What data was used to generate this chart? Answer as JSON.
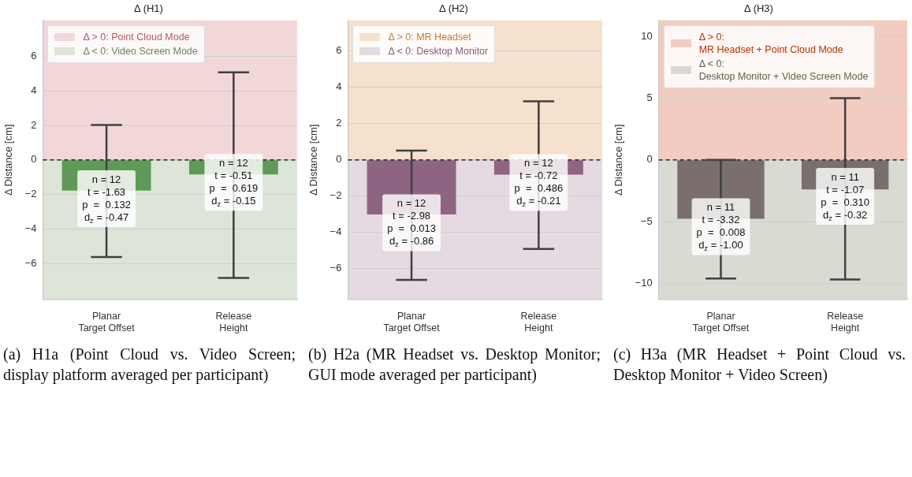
{
  "chart_data": [
    {
      "type": "bar",
      "title": "Δ (H1)",
      "ylabel": "Δ Distance [cm]",
      "categories": [
        "Planar Target Offset",
        "Release Height"
      ],
      "values": [
        -1.78,
        -0.84
      ],
      "color": "#5e9a55",
      "errors": [
        [
          -5.63,
          2.03
        ],
        [
          -6.84,
          5.08
        ]
      ],
      "ylim": [
        -8.1,
        8.1
      ],
      "yticks": [
        {
          "value": -6,
          "label": "−6"
        },
        {
          "value": -4,
          "label": "−4"
        },
        {
          "value": -2,
          "label": "−2"
        },
        0,
        2,
        4,
        6
      ],
      "grid": "y",
      "legend": "top left",
      "bands": [
        {
          "axis": "y",
          "from": 0,
          "to": 8.1,
          "label": "Δ > 0: Point Cloud Mode",
          "color": "#f2d7d9"
        },
        {
          "axis": "y",
          "from": -8.1,
          "to": 0,
          "label": "Δ < 0: Video Screen Mode",
          "color": "#dce5d8"
        }
      ],
      "ref_lines": [
        {
          "axis": "y",
          "value": 0,
          "color": "#000000",
          "line_style": "dashed"
        }
      ],
      "annotations": [
        {
          "text": "n = 12\nt = -1.63\np  =  0.132\nd$_{z}$ = -0.47",
          "x": "Planar Target Offset",
          "y": -2.25
        },
        {
          "text": "n = 12\nt = -0.51\np  =  0.619\nd$_{z}$ = -0.15",
          "x": "Release Height",
          "y": -1.3
        },
        "(a) H1a (Point Cloud vs. Video Screen; display platform averaged per participant)"
      ]
    },
    {
      "type": "bar",
      "title": "Δ (H2)",
      "ylabel": "Δ Distance [cm]",
      "categories": [
        "Planar Target Offset",
        "Release Height"
      ],
      "values": [
        -3.01,
        -0.81
      ],
      "color": "#8e6482",
      "errors": [
        [
          -6.61,
          0.51
        ],
        [
          -4.91,
          3.23
        ]
      ],
      "ylim": [
        -7.7,
        7.7
      ],
      "yticks": [
        {
          "value": -6,
          "label": "−6"
        },
        {
          "value": -4,
          "label": "−4"
        },
        {
          "value": -2,
          "label": "−2"
        },
        0,
        2,
        4,
        6
      ],
      "grid": "y",
      "legend": "top left",
      "bands": [
        {
          "axis": "y",
          "from": 0,
          "to": 7.7,
          "label": "Δ > 0: MR Headset",
          "color": "#f6e1cf"
        },
        {
          "axis": "y",
          "from": -7.7,
          "to": 0,
          "label": "Δ < 0: Desktop Monitor",
          "color": "#e5d9e2"
        }
      ],
      "ref_lines": [
        {
          "axis": "y",
          "value": 0,
          "color": "#000000",
          "line_style": "dashed"
        }
      ],
      "annotations": [
        {
          "text": "n = 12\nt = -2.98\np  =  0.013\nd$_{z}$ = -0.86",
          "x": "Planar Target Offset",
          "y": -3.46
        },
        {
          "text": "n = 12\nt = -0.72\np  =  0.486\nd$_{z}$ = -0.21",
          "x": "Release Height",
          "y": -1.25
        },
        "(b) H2a (MR Headset vs. Desktop Monitor; GUI mode averaged per participant)"
      ]
    },
    {
      "type": "bar",
      "title": "Δ (H3)",
      "ylabel": "Δ Distance [cm]",
      "categories": [
        "Planar Target Offset",
        "Release Height"
      ],
      "values": [
        -4.77,
        -2.39
      ],
      "color": "#7a6f6c",
      "errors": [
        [
          -9.6,
          0
        ],
        [
          -9.67,
          5
        ]
      ],
      "ylim": [
        -11.3,
        11.3
      ],
      "yticks": [
        {
          "value": -10,
          "label": "−10"
        },
        {
          "value": -5,
          "label": "−5"
        },
        0,
        5,
        10
      ],
      "grid": "y",
      "legend": "top left",
      "bands": [
        {
          "axis": "y",
          "from": 0,
          "to": 11.3,
          "label": "Δ > 0:\nMR Headset + Point Cloud Mode",
          "color": "#f2ccc0"
        },
        {
          "axis": "y",
          "from": -11.3,
          "to": 0,
          "label": "Δ < 0:\nDesktop Monitor + Video Screen Mode",
          "color": "#d9dbd3"
        }
      ],
      "ref_lines": [
        {
          "axis": "y",
          "value": 0,
          "color": "#000000",
          "line_style": "dashed"
        }
      ],
      "annotations": [
        {
          "text": "n = 11\nt = -3.32\np  =  0.008\nd$_{z}$ = -1.00",
          "x": "Planar Target Offset",
          "y": -5.4
        },
        {
          "text": "n = 11\nt = -1.07\np  =  0.310\nd$_{z}$ = -0.32",
          "x": "Release Height",
          "y": -2.95
        },
        "(c) H3a (MR Headset + Point Cloud vs. Desktop Monitor + Video Screen)"
      ]
    }
  ]
}
